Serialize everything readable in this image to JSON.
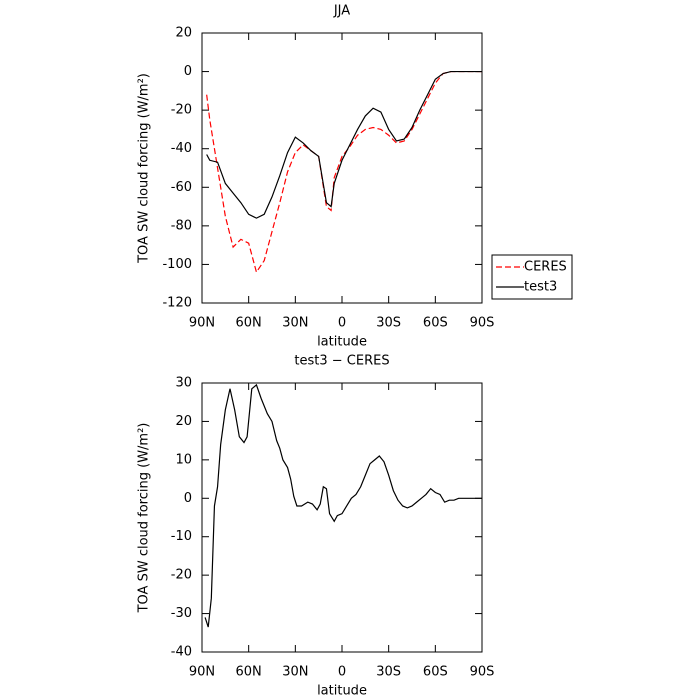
{
  "chart_data": [
    {
      "type": "line",
      "title": "JJA",
      "xlabel": "latitude",
      "ylabel": "TOA SW cloud forcing (W/m²)",
      "x": [
        87,
        85,
        80,
        75,
        70,
        65,
        60,
        55,
        50,
        45,
        40,
        35,
        30,
        25,
        20,
        15,
        10,
        7,
        5,
        0,
        -5,
        -10,
        -15,
        -20,
        -25,
        -30,
        -35,
        -40,
        -45,
        -50,
        -55,
        -60,
        -65,
        -70,
        -75,
        -80,
        -85,
        -90
      ],
      "series": [
        {
          "name": "CERES",
          "color": "#ff0000",
          "line_style": "dashed",
          "values": [
            -12,
            -25,
            -50,
            -75,
            -91,
            -87,
            -89,
            -104,
            -98,
            -83,
            -68,
            -52,
            -42,
            -38,
            -41,
            -44,
            -70,
            -72,
            -55,
            -44,
            -39,
            -33,
            -30,
            -29,
            -30,
            -33,
            -37,
            -36,
            -30,
            -22,
            -14,
            -6,
            -1,
            0,
            0,
            0,
            0,
            0
          ]
        },
        {
          "name": "test3",
          "color": "#000000",
          "line_style": "solid",
          "values": [
            -43,
            -46,
            -47,
            -58,
            -63,
            -68,
            -74,
            -76,
            -74,
            -65,
            -54,
            -42,
            -34,
            -37,
            -41,
            -44,
            -68,
            -70,
            -58,
            -46,
            -38,
            -30,
            -23,
            -19,
            -21,
            -30,
            -36,
            -35,
            -29,
            -20,
            -12,
            -4,
            -1,
            0,
            0,
            0,
            0,
            0
          ]
        }
      ],
      "xlim": [
        90,
        -90
      ],
      "xticks": [
        {
          "value": 90,
          "label": "90N"
        },
        {
          "value": 60,
          "label": "60N"
        },
        {
          "value": 30,
          "label": "30N"
        },
        0,
        {
          "value": -30,
          "label": "30S"
        },
        {
          "value": -60,
          "label": "60S"
        },
        {
          "value": -90,
          "label": "90S"
        }
      ],
      "ylim": [
        -120,
        20
      ],
      "yticks": [
        -120,
        -100,
        -80,
        -60,
        -40,
        -20,
        0,
        20
      ],
      "legend": "right"
    },
    {
      "type": "line",
      "title": "test3 − CERES",
      "xlabel": "latitude",
      "ylabel": "TOA SW cloud forcing (W/m²)",
      "x": [
        88,
        86,
        84,
        82,
        80,
        78,
        75,
        72,
        69,
        66,
        63,
        61,
        58,
        55,
        52,
        48,
        45,
        42,
        40,
        38,
        35,
        33,
        31,
        29,
        26,
        22,
        19,
        16,
        14,
        12,
        10,
        8,
        5,
        3,
        0,
        -3,
        -6,
        -9,
        -12,
        -15,
        -18,
        -21,
        -24,
        -27,
        -30,
        -33,
        -36,
        -39,
        -42,
        -45,
        -48,
        -51,
        -54,
        -57,
        -60,
        -63,
        -66,
        -69,
        -72,
        -75,
        -80,
        -90
      ],
      "series": [
        {
          "name": "test3 − CERES",
          "color": "#000000",
          "line_style": "solid",
          "values": [
            -31,
            -33.5,
            -26,
            -2,
            3,
            14,
            23,
            28.5,
            23,
            16,
            14.5,
            16,
            28.5,
            29.5,
            26,
            22,
            20,
            15,
            13,
            10,
            8,
            5,
            0.5,
            -2,
            -2,
            -1,
            -1.5,
            -3,
            -1.5,
            3,
            2.5,
            -4,
            -6,
            -4.5,
            -4,
            -2,
            0,
            1,
            3,
            6,
            9,
            10,
            11,
            9.5,
            6,
            2,
            -0.5,
            -2,
            -2.5,
            -2,
            -1,
            0,
            1,
            2.5,
            1.5,
            1,
            -1,
            -0.5,
            -0.5,
            0,
            0,
            0
          ]
        }
      ],
      "xlim": [
        90,
        -90
      ],
      "xticks": [
        {
          "value": 90,
          "label": "90N"
        },
        {
          "value": 60,
          "label": "60N"
        },
        {
          "value": 30,
          "label": "30N"
        },
        0,
        {
          "value": -30,
          "label": "30S"
        },
        {
          "value": -60,
          "label": "60S"
        },
        {
          "value": -90,
          "label": "90S"
        }
      ],
      "ylim": [
        -40,
        30
      ],
      "yticks": [
        -40,
        -30,
        -20,
        -10,
        0,
        10,
        20,
        30
      ]
    }
  ]
}
